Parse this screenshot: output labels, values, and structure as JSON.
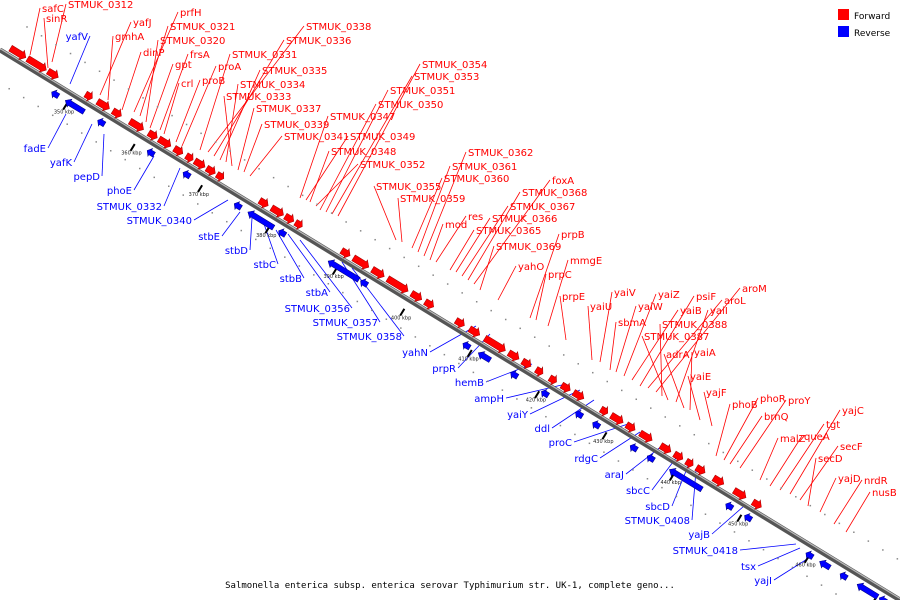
{
  "legend": [
    {
      "label": "Forward",
      "color": "#ff0000"
    },
    {
      "label": "Reverse",
      "color": "#0000ff"
    }
  ],
  "caption": "Salmonella enterica subsp. enterica serovar Typhimurium str. UK-1, complete geno...",
  "ticks": [
    "350 kbp",
    "360 kbp",
    "370 kbp",
    "380 kbp",
    "390 kbp",
    "400 kbp",
    "410 kbp",
    "420 kbp",
    "430 kbp",
    "440 kbp",
    "450 kbp",
    "460 kbp",
    "470 kbp"
  ],
  "forward_genes": [
    "safC",
    "STMUK_0312",
    "sinR",
    "yafJ",
    "gmhA",
    "dinP",
    "prfH",
    "STMUK_0321",
    "STMUK_0320",
    "gpt",
    "frsA",
    "crl",
    "proA",
    "proB",
    "STMUK_0331",
    "STMUK_0338",
    "STMUK_0336",
    "STMUK_0335",
    "STMUK_0334",
    "STMUK_0333",
    "STMUK_0337",
    "STMUK_0339",
    "STMUK_0341",
    "STMUK_0347",
    "STMUK_0349",
    "STMUK_0348",
    "STMUK_0352",
    "STMUK_0350",
    "STMUK_0351",
    "STMUK_0353",
    "STMUK_0354",
    "STMUK_0355",
    "STMUK_0359",
    "STMUK_0360",
    "STMUK_0361",
    "STMUK_0362",
    "mod",
    "res",
    "STMUK_0365",
    "STMUK_0366",
    "STMUK_0367",
    "STMUK_0368",
    "foxA",
    "STMUK_0369",
    "yahO",
    "prpB",
    "prpC",
    "mmgE",
    "prpE",
    "yaiU",
    "yaiV",
    "sbmA",
    "yaiW",
    "yaiZ",
    "yaiB",
    "psiF",
    "aroL",
    "aroM",
    "STMUK_0388",
    "STMUK_0387",
    "yaiI",
    "adrA",
    "yaiA",
    "yaiE",
    "yajF",
    "phoB",
    "phoR",
    "brnQ",
    "proY",
    "malZ",
    "queA",
    "tgt",
    "yajC",
    "secF",
    "secD",
    "yajD",
    "nrdR",
    "nusB"
  ],
  "reverse_genes": [
    "yafV",
    "fadE",
    "yafK",
    "pepD",
    "phoE",
    "STMUK_0332",
    "STMUK_0340",
    "stbE",
    "stbD",
    "stbC",
    "stbB",
    "stbA",
    "STMUK_0356",
    "STMUK_0357",
    "STMUK_0358",
    "yahN",
    "prpR",
    "hemB",
    "ampH",
    "yaiY",
    "ddl",
    "proC",
    "rdgC",
    "araJ",
    "sbcC",
    "sbcD",
    "STMUK_0408",
    "yajB",
    "STMUK_0418",
    "tsx",
    "yajI"
  ]
}
